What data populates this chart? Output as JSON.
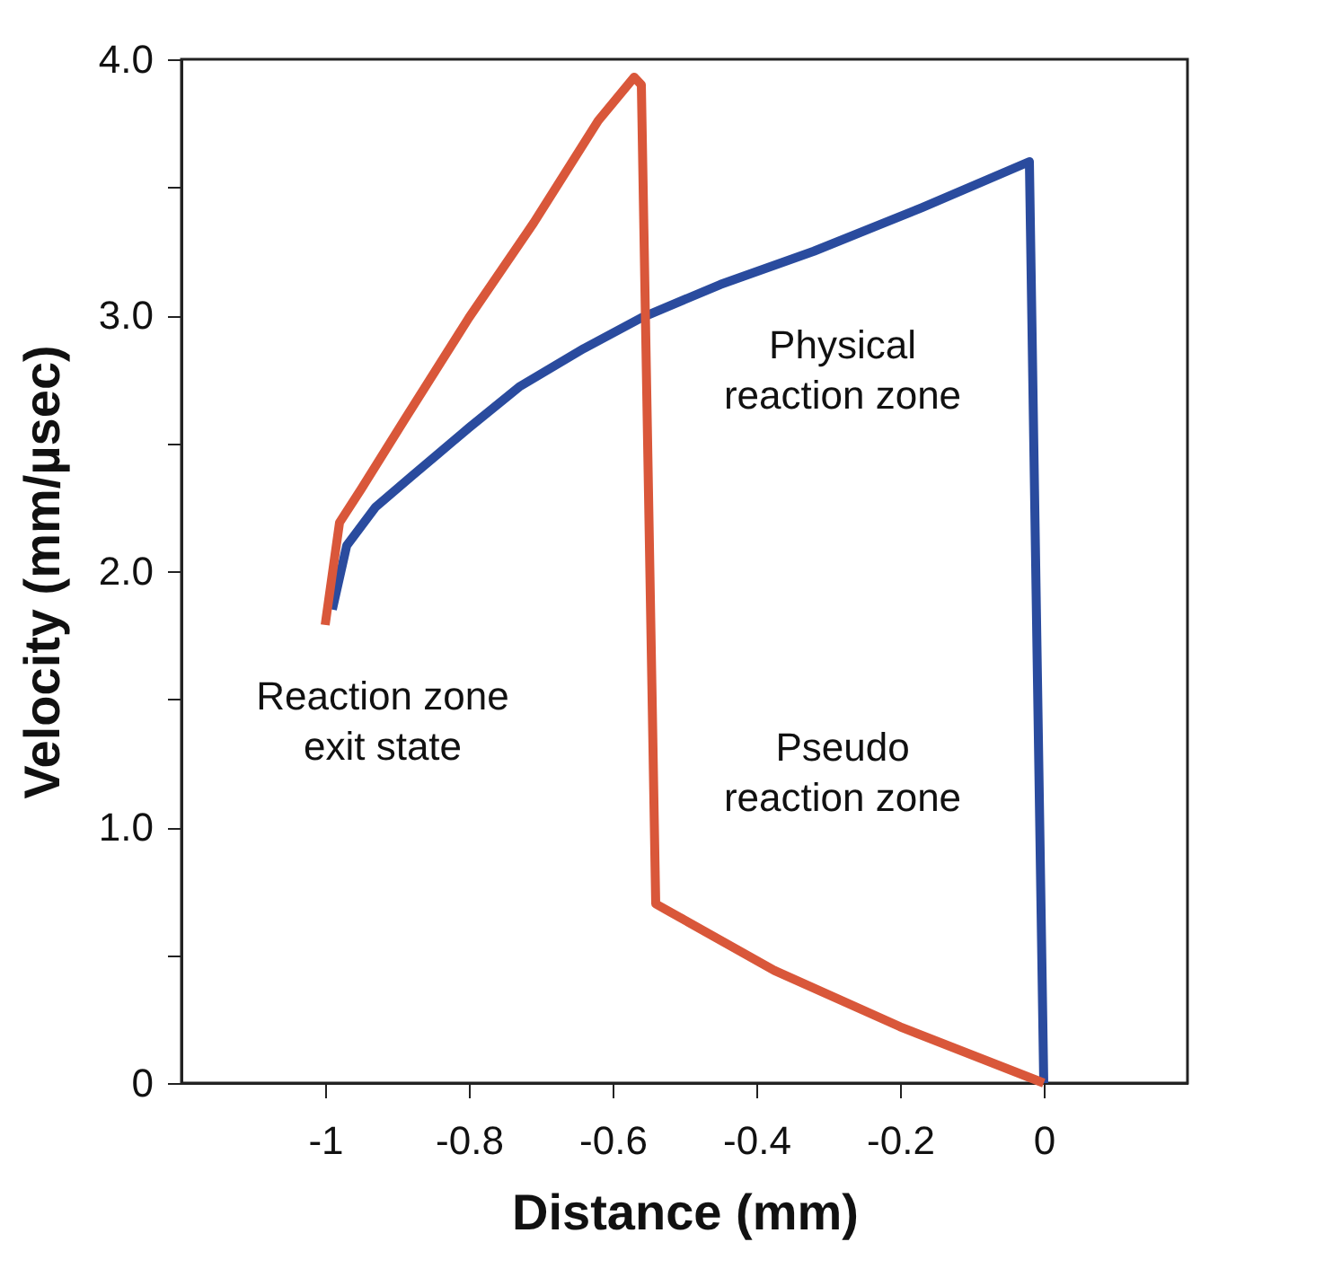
{
  "chart_data": {
    "type": "line",
    "xlabel": "Distance (mm)",
    "ylabel": "Velocity (mm/µsec)",
    "xlim": [
      -1.2,
      0.2
    ],
    "ylim": [
      0,
      4.0
    ],
    "xticks": [
      -1,
      -0.8,
      -0.6,
      -0.4,
      -0.2,
      0
    ],
    "yticks": [
      0,
      {
        "value": 0.5,
        "label": null
      },
      {
        "value": 1,
        "label": "1.0"
      },
      {
        "value": 1.5,
        "label": null
      },
      {
        "value": 2,
        "label": "2.0"
      },
      {
        "value": 2.5,
        "label": null
      },
      {
        "value": 3,
        "label": "3.0"
      },
      {
        "value": 3.5,
        "label": null
      },
      {
        "value": 4,
        "label": "4.0"
      }
    ],
    "marker": "none",
    "line_style": "solid",
    "series": [
      {
        "color": "#2a4b9e",
        "x": [
          -0.99,
          -0.97,
          -0.93,
          -0.88,
          -0.8,
          -0.73,
          -0.64,
          -0.56,
          -0.45,
          -0.32,
          -0.17,
          -0.02,
          0.0
        ],
        "values": [
          1.85,
          2.1,
          2.25,
          2.37,
          2.56,
          2.72,
          2.87,
          2.99,
          3.12,
          3.25,
          3.42,
          3.6,
          0
        ]
      },
      {
        "color": "#d9573a",
        "x": [
          -1.0,
          -0.98,
          -0.95,
          -0.89,
          -0.8,
          -0.71,
          -0.62,
          -0.57,
          -0.56,
          -0.54,
          -0.375,
          -0.2,
          0.0
        ],
        "values": [
          1.79,
          2.19,
          2.32,
          2.59,
          2.99,
          3.36,
          3.76,
          3.93,
          3.9,
          0.7,
          0.44,
          0.22,
          0
        ]
      }
    ],
    "annotations": [
      "Physical\nreaction zone",
      "Reaction zone\nexit state",
      "Pseudo\nreaction zone"
    ]
  }
}
